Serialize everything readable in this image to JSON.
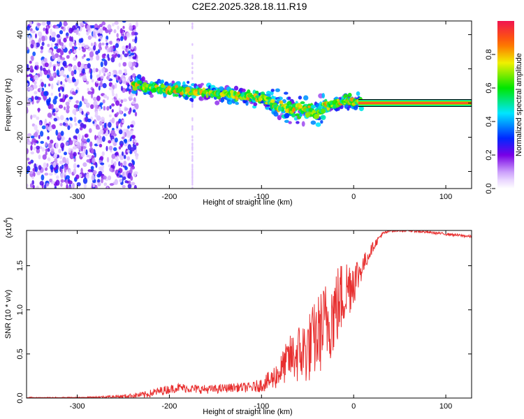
{
  "title": "C2E2.2025.328.18.11.R19",
  "chart_data": [
    {
      "type": "heatmap",
      "xlabel": "Height of straight line (km)",
      "ylabel": "Frequency (Hz)",
      "xlim": [
        -355,
        128
      ],
      "ylim": [
        -50,
        48
      ],
      "x_ticks": [
        -300,
        -200,
        -100,
        0,
        100
      ],
      "x_tick_labels": [
        "-300",
        "-200",
        "-100",
        "0",
        "100"
      ],
      "y_ticks": [
        -40,
        -20,
        0,
        20,
        40
      ],
      "y_tick_labels": [
        "-40",
        "-20",
        "0",
        "20",
        "40"
      ],
      "colorbar": {
        "label": "Normalized spectral amplitude",
        "range": [
          0,
          1
        ],
        "ticks": [
          0,
          0.2,
          0.4,
          0.6,
          0.8
        ],
        "tick_labels": [
          "0.0",
          "0.2",
          "0.4",
          "0.6",
          "0.8"
        ]
      },
      "noise_region_x": [
        -355,
        -235
      ],
      "ridge": {
        "x": [
          -240,
          -220,
          -200,
          -180,
          -160,
          -140,
          -120,
          -100,
          -90,
          -80,
          -70,
          -60,
          -50,
          -40,
          -30,
          -20,
          -10,
          0,
          10
        ],
        "freq": [
          11,
          9,
          8,
          7,
          6,
          5,
          4,
          3,
          1,
          -2,
          -4,
          -3,
          -5,
          -6,
          -2,
          0,
          1,
          1,
          0
        ]
      },
      "carrier": {
        "x": [
          5,
          128
        ],
        "freq": 0
      }
    },
    {
      "type": "line",
      "xlabel": "Height of straight line (km)",
      "ylabel": "SNR (10 * v/v)",
      "y_multiplier": "(x10",
      "y_multiplier_exp": "4",
      "xlim": [
        -355,
        128
      ],
      "ylim": [
        0,
        1.9
      ],
      "x_ticks": [
        -300,
        -200,
        -100,
        0,
        100
      ],
      "x_tick_labels": [
        "-300",
        "-200",
        "-100",
        "0",
        "100"
      ],
      "y_ticks": [
        0,
        0.5,
        1.0,
        1.5
      ],
      "y_tick_labels": [
        "0.0",
        "0.5",
        "1.0",
        "1.5"
      ],
      "series": [
        {
          "name": "SNR",
          "color": "#e83030",
          "x": [
            -355,
            -300,
            -250,
            -225,
            -210,
            -190,
            -170,
            -150,
            -130,
            -110,
            -100,
            -90,
            -80,
            -70,
            -60,
            -50,
            -40,
            -30,
            -20,
            -10,
            0,
            5,
            10,
            20,
            30,
            40,
            60,
            80,
            100,
            128
          ],
          "y": [
            0.0,
            0.0,
            0.02,
            0.04,
            0.08,
            0.12,
            0.1,
            0.1,
            0.12,
            0.12,
            0.15,
            0.2,
            0.3,
            0.45,
            0.5,
            0.55,
            0.7,
            0.85,
            1.0,
            1.2,
            1.35,
            1.4,
            1.5,
            1.7,
            1.85,
            1.9,
            1.9,
            1.88,
            1.86,
            1.83
          ],
          "spread": [
            0.005,
            0.008,
            0.02,
            0.04,
            0.05,
            0.05,
            0.05,
            0.05,
            0.05,
            0.06,
            0.08,
            0.12,
            0.18,
            0.25,
            0.35,
            0.4,
            0.45,
            0.5,
            0.5,
            0.4,
            0.3,
            0.2,
            0.12,
            0.06,
            0.03,
            0.02,
            0.015,
            0.015,
            0.015,
            0.015
          ]
        }
      ]
    }
  ]
}
